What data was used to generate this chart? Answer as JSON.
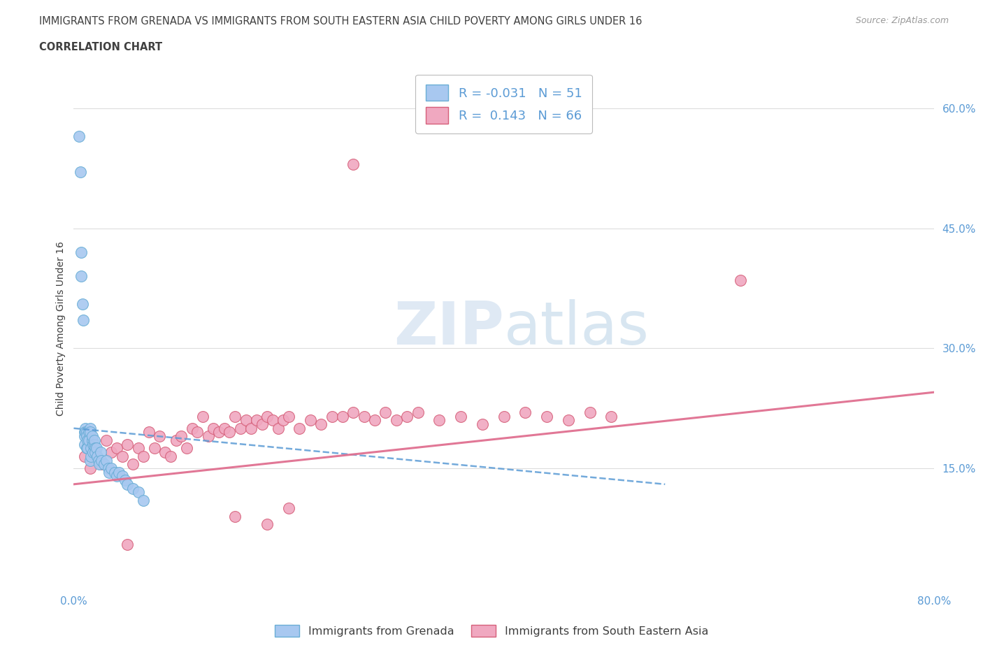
{
  "title_line1": "IMMIGRANTS FROM GRENADA VS IMMIGRANTS FROM SOUTH EASTERN ASIA CHILD POVERTY AMONG GIRLS UNDER 16",
  "title_line2": "CORRELATION CHART",
  "source_text": "Source: ZipAtlas.com",
  "ylabel": "Child Poverty Among Girls Under 16",
  "xlim": [
    0.0,
    0.8
  ],
  "ylim": [
    0.0,
    0.65
  ],
  "grenada_color": "#a8c8f0",
  "grenada_edge": "#6aaed6",
  "sea_color": "#f0a8c0",
  "sea_edge": "#d6607a",
  "grenada_R": -0.031,
  "grenada_N": 51,
  "sea_R": 0.143,
  "sea_N": 66,
  "watermark": "ZIPatlas",
  "legend_label_grenada": "Immigrants from Grenada",
  "legend_label_sea": "Immigrants from South Eastern Asia",
  "background_color": "#ffffff",
  "grid_color": "#dddddd",
  "title_color": "#404040",
  "axis_label_color": "#5b9bd5",
  "grenada_x": [
    0.005,
    0.006,
    0.007,
    0.007,
    0.008,
    0.009,
    0.01,
    0.01,
    0.01,
    0.011,
    0.011,
    0.012,
    0.012,
    0.012,
    0.013,
    0.013,
    0.014,
    0.014,
    0.015,
    0.015,
    0.015,
    0.016,
    0.016,
    0.017,
    0.017,
    0.018,
    0.018,
    0.019,
    0.019,
    0.02,
    0.02,
    0.021,
    0.022,
    0.023,
    0.024,
    0.025,
    0.026,
    0.028,
    0.03,
    0.032,
    0.033,
    0.035,
    0.038,
    0.04,
    0.042,
    0.045,
    0.048,
    0.05,
    0.055,
    0.06,
    0.065
  ],
  "grenada_y": [
    0.565,
    0.52,
    0.42,
    0.39,
    0.355,
    0.335,
    0.195,
    0.19,
    0.18,
    0.2,
    0.195,
    0.195,
    0.19,
    0.175,
    0.185,
    0.175,
    0.195,
    0.185,
    0.2,
    0.195,
    0.16,
    0.175,
    0.165,
    0.185,
    0.19,
    0.18,
    0.17,
    0.18,
    0.185,
    0.175,
    0.17,
    0.175,
    0.165,
    0.16,
    0.155,
    0.17,
    0.16,
    0.155,
    0.16,
    0.15,
    0.145,
    0.15,
    0.145,
    0.14,
    0.145,
    0.14,
    0.135,
    0.13,
    0.125,
    0.12,
    0.11
  ],
  "sea_x": [
    0.01,
    0.015,
    0.02,
    0.025,
    0.03,
    0.035,
    0.04,
    0.045,
    0.05,
    0.055,
    0.06,
    0.065,
    0.07,
    0.075,
    0.08,
    0.085,
    0.09,
    0.095,
    0.1,
    0.105,
    0.11,
    0.115,
    0.12,
    0.125,
    0.13,
    0.135,
    0.14,
    0.145,
    0.15,
    0.155,
    0.16,
    0.165,
    0.17,
    0.175,
    0.18,
    0.185,
    0.19,
    0.195,
    0.2,
    0.21,
    0.22,
    0.23,
    0.24,
    0.25,
    0.26,
    0.27,
    0.28,
    0.29,
    0.3,
    0.31,
    0.32,
    0.34,
    0.36,
    0.38,
    0.4,
    0.42,
    0.44,
    0.46,
    0.48,
    0.5,
    0.26,
    0.05,
    0.62,
    0.15,
    0.18,
    0.2
  ],
  "sea_y": [
    0.165,
    0.15,
    0.165,
    0.155,
    0.185,
    0.17,
    0.175,
    0.165,
    0.18,
    0.155,
    0.175,
    0.165,
    0.195,
    0.175,
    0.19,
    0.17,
    0.165,
    0.185,
    0.19,
    0.175,
    0.2,
    0.195,
    0.215,
    0.19,
    0.2,
    0.195,
    0.2,
    0.195,
    0.215,
    0.2,
    0.21,
    0.2,
    0.21,
    0.205,
    0.215,
    0.21,
    0.2,
    0.21,
    0.215,
    0.2,
    0.21,
    0.205,
    0.215,
    0.215,
    0.22,
    0.215,
    0.21,
    0.22,
    0.21,
    0.215,
    0.22,
    0.21,
    0.215,
    0.205,
    0.215,
    0.22,
    0.215,
    0.21,
    0.22,
    0.215,
    0.53,
    0.055,
    0.385,
    0.09,
    0.08,
    0.1
  ],
  "grenada_trend_x": [
    0.0,
    0.55
  ],
  "grenada_trend_y": [
    0.2,
    0.13
  ],
  "sea_trend_x": [
    0.0,
    0.8
  ],
  "sea_trend_y": [
    0.13,
    0.245
  ]
}
